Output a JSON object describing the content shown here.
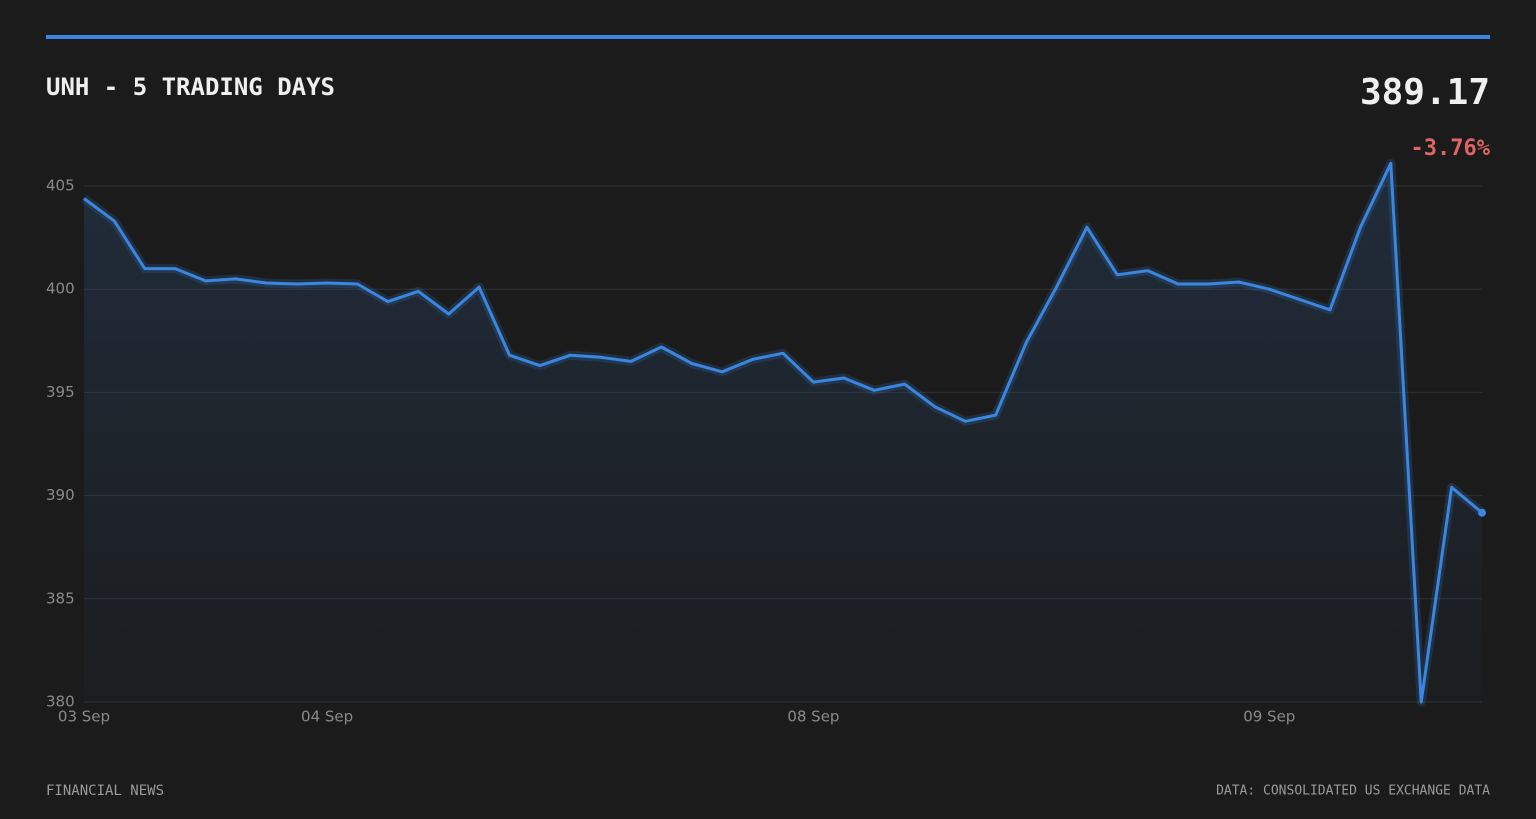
{
  "chart_data": {
    "type": "line",
    "title": "UNH - 5 TRADING DAYS",
    "price": "389.17",
    "change": "-3.76%",
    "footer_left": "FINANCIAL NEWS",
    "footer_right": "DATA: CONSOLIDATED US EXCHANGE DATA",
    "categories": [
      "03 Sep",
      null,
      null,
      null,
      null,
      null,
      null,
      null,
      "04 Sep",
      null,
      null,
      null,
      null,
      null,
      null,
      null,
      null,
      null,
      null,
      null,
      null,
      null,
      null,
      null,
      "08 Sep",
      null,
      null,
      null,
      null,
      null,
      null,
      null,
      null,
      null,
      null,
      null,
      null,
      null,
      null,
      "09 Sep",
      null,
      null,
      null,
      null,
      null,
      null,
      null
    ],
    "series": [
      {
        "color": "#3a86e0",
        "values": [
          404.4,
          403.3,
          401.0,
          401.0,
          400.4,
          400.5,
          400.3,
          400.25,
          400.3,
          400.25,
          399.4,
          399.9,
          398.8,
          400.1,
          396.8,
          396.3,
          396.8,
          396.7,
          396.5,
          397.2,
          396.4,
          396.0,
          396.6,
          396.9,
          395.5,
          395.7,
          395.1,
          395.4,
          394.3,
          393.6,
          393.9,
          397.4,
          400.1,
          403.0,
          400.7,
          400.9,
          400.25,
          400.25,
          400.35,
          400.0,
          399.5,
          399.0,
          403.0,
          406.1,
          380.0,
          390.4,
          389.17
        ]
      }
    ],
    "ylim": [
      380,
      405
    ],
    "yticks": [
      380,
      385,
      390,
      395,
      400,
      405
    ],
    "grid": true
  }
}
